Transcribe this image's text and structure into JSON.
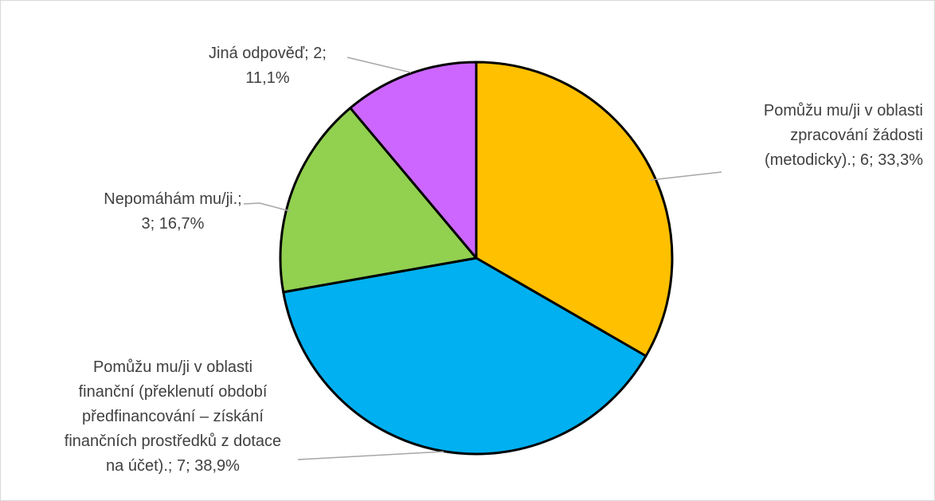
{
  "chart_data": {
    "type": "pie",
    "title": "",
    "series": [
      {
        "values": [
          6,
          7,
          3,
          2
        ]
      }
    ],
    "slices": [
      {
        "category": "Pomůžu mu/ji v oblasti zpracování žádosti (metodicky).",
        "value": 6,
        "percent": "33,3%",
        "color": "#FFC000",
        "label_lines": [
          "Pomůžu mu/ji v oblasti",
          "zpracování žádosti",
          "(metodicky).; 6; 33,3%"
        ]
      },
      {
        "category": "Pomůžu mu/ji v oblasti finanční (překlenutí období předfinancování – získání finančních prostředků z dotace na účet).",
        "value": 7,
        "percent": "38,9%",
        "color": "#00B0F0",
        "label_lines": [
          "Pomůžu mu/ji v oblasti",
          "finanční (překlenutí období",
          "předfinancování – získání",
          "finančních prostředků z dotace",
          "na účet).; 7; 38,9%"
        ]
      },
      {
        "category": "Nepomáhám mu/ji.",
        "value": 3,
        "percent": "16,7%",
        "color": "#92D050",
        "label_lines": [
          "Nepomáhám mu/ji.;",
          "3; 16,7%"
        ]
      },
      {
        "category": "Jiná odpověď",
        "value": 2,
        "percent": "11,1%",
        "color": "#CC66FF",
        "label_lines": [
          "Jiná odpověď; 2;",
          "11,1%"
        ]
      }
    ],
    "legend": "none",
    "start_angle": "12 o'clock",
    "direction": "clockwise"
  }
}
